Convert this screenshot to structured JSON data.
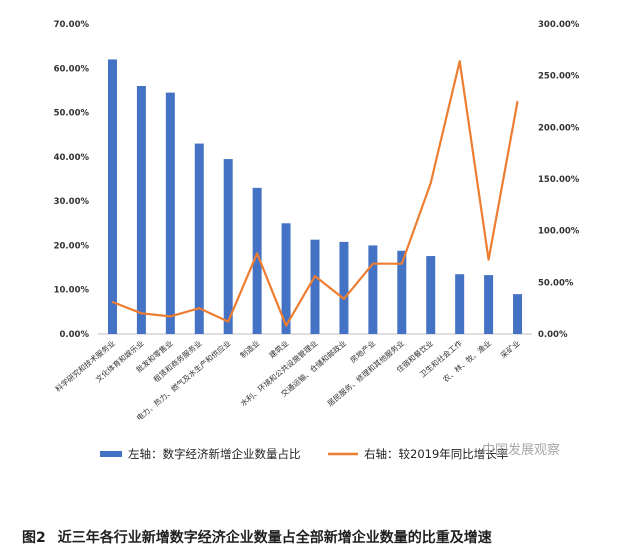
{
  "chart_data": {
    "type": "bar",
    "categories": [
      "科学研究和技术服务业",
      "文化体育和娱乐业",
      "批发和零售业",
      "租赁和商务服务业",
      "电力、热力、燃气及水生产和供应业",
      "制造业",
      "建筑业",
      "水利、环境和公共设施管理业",
      "交通运输、仓储和邮政业",
      "房地产业",
      "居民服务、修理和其他服务业",
      "住宿和餐饮业",
      "卫生和社会工作",
      "农、林、牧、渔业",
      "采矿业"
    ],
    "series": [
      {
        "name": "左轴：数字经济新增企业数量占比",
        "kind": "bar",
        "axis": "left",
        "values": [
          62.0,
          56.0,
          54.5,
          43.0,
          39.5,
          33.0,
          25.0,
          21.3,
          20.8,
          20.0,
          18.8,
          17.6,
          13.5,
          13.3,
          9.0
        ]
      },
      {
        "name": "右轴：较2019年同比增长率",
        "kind": "line",
        "axis": "right",
        "values": [
          31,
          20,
          17,
          25,
          12,
          78,
          8,
          56,
          34,
          68,
          68,
          146,
          264,
          72,
          225
        ]
      }
    ],
    "left_axis": {
      "ticks": [
        "0.00%",
        "10.00%",
        "20.00%",
        "30.00%",
        "40.00%",
        "50.00%",
        "60.00%",
        "70.00%"
      ],
      "ylim": [
        0,
        70
      ]
    },
    "right_axis": {
      "ticks": [
        "0.00%",
        "50.00%",
        "100.00%",
        "150.00%",
        "200.00%",
        "250.00%",
        "300.00%"
      ],
      "ylim": [
        0,
        300
      ]
    },
    "colors": {
      "bar": "#4472c4",
      "line": "#ed7d31"
    },
    "legend_position": "bottom",
    "grid": false
  },
  "figure_label": "图2",
  "caption": "近三年各行业新增数字经济企业数量占全部新增企业数量的比重及增速",
  "watermark": "中国发展观察"
}
